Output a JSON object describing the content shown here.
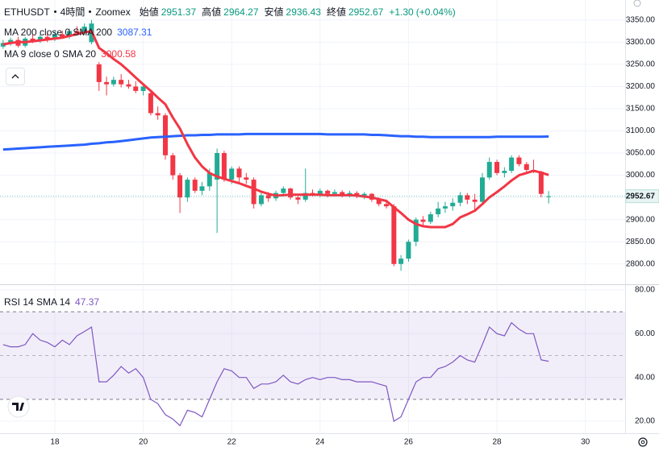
{
  "header": {
    "symbol": "ETHUSDT",
    "interval": "4時間",
    "exchange": "Zoomex",
    "open_label": "始値",
    "high_label": "高値",
    "low_label": "安値",
    "close_label": "終値",
    "change": "+1.30",
    "change_pct": "(+0.04%)"
  },
  "chart_data": [
    {
      "type": "candlestick",
      "up_color": "#22ab94",
      "down_color": "#f23645",
      "x": [
        16.83,
        17,
        17.17,
        17.33,
        17.5,
        17.67,
        17.83,
        18,
        18.17,
        18.33,
        18.5,
        18.67,
        18.83,
        19,
        19.17,
        19.33,
        19.5,
        19.67,
        19.83,
        20,
        20.17,
        20.33,
        20.5,
        20.67,
        20.83,
        21,
        21.17,
        21.33,
        21.5,
        21.67,
        21.83,
        22,
        22.17,
        22.33,
        22.5,
        22.67,
        22.83,
        23,
        23.17,
        23.33,
        23.5,
        23.67,
        23.83,
        24,
        24.17,
        24.33,
        24.5,
        24.67,
        24.83,
        25,
        25.17,
        25.33,
        25.5,
        25.67,
        25.83,
        26,
        26.17,
        26.33,
        26.5,
        26.67,
        26.83,
        27,
        27.17,
        27.33,
        27.5,
        27.67,
        27.83,
        28,
        28.17,
        28.33,
        28.5,
        28.67,
        28.83,
        29,
        29.17
      ],
      "open": [
        3290,
        3298,
        3305,
        3292,
        3308,
        3302,
        3312,
        3306,
        3318,
        3312,
        3325,
        3320,
        3300,
        3250,
        3210,
        3205,
        3215,
        3205,
        3200,
        3190,
        3185,
        3140,
        3135,
        3045,
        3000,
        2950,
        2990,
        2965,
        2975,
        2990,
        3050,
        2990,
        3015,
        2995,
        2990,
        2935,
        2955,
        2948,
        2960,
        2970,
        2950,
        2945,
        2960,
        2955,
        2965,
        2958,
        2962,
        2955,
        2960,
        2952,
        2958,
        2945,
        2935,
        2930,
        2800,
        2812,
        2850,
        2900,
        2895,
        2912,
        2925,
        2930,
        2938,
        2955,
        2945,
        2940,
        2995,
        3030,
        3005,
        3010,
        3040,
        3025,
        3012,
        3008,
        2951.37
      ],
      "high": [
        3305,
        3310,
        3312,
        3312,
        3318,
        3318,
        3320,
        3324,
        3326,
        3330,
        3336,
        3342,
        3350,
        3255,
        3222,
        3222,
        3228,
        3215,
        3212,
        3208,
        3190,
        3155,
        3140,
        3050,
        3005,
        2995,
        2995,
        2985,
        3015,
        3060,
        3055,
        3020,
        3020,
        3005,
        2995,
        2962,
        2962,
        2965,
        2975,
        2972,
        2958,
        3015,
        2968,
        2970,
        2968,
        2968,
        2966,
        2965,
        2964,
        2962,
        2960,
        2950,
        2945,
        2935,
        2820,
        2855,
        2905,
        2908,
        2918,
        2940,
        2940,
        2948,
        2962,
        2960,
        2958,
        3005,
        3040,
        3035,
        3018,
        3045,
        3045,
        3030,
        3035,
        3010,
        2964.27
      ],
      "low": [
        3285,
        3292,
        3288,
        3288,
        3298,
        3298,
        3300,
        3302,
        3308,
        3308,
        3316,
        3316,
        3295,
        3190,
        3180,
        3200,
        3198,
        3195,
        3185,
        3180,
        3135,
        3125,
        3035,
        2990,
        2915,
        2940,
        2960,
        2955,
        2965,
        2870,
        2985,
        2980,
        2985,
        2980,
        2925,
        2930,
        2940,
        2942,
        2955,
        2945,
        2935,
        2940,
        2952,
        2950,
        2950,
        2952,
        2950,
        2950,
        2948,
        2946,
        2940,
        2930,
        2925,
        2795,
        2785,
        2805,
        2840,
        2885,
        2890,
        2905,
        2915,
        2920,
        2930,
        2935,
        2920,
        2935,
        2990,
        3000,
        2995,
        3005,
        3020,
        3005,
        3005,
        2950,
        2936.43
      ],
      "close": [
        3298,
        3305,
        3292,
        3308,
        3302,
        3312,
        3306,
        3318,
        3312,
        3325,
        3320,
        3335,
        3342,
        3210,
        3205,
        3215,
        3205,
        3200,
        3190,
        3200,
        3140,
        3135,
        3045,
        3000,
        2950,
        2990,
        2965,
        2975,
        3005,
        3050,
        2990,
        3015,
        2995,
        2990,
        2935,
        2955,
        2948,
        2960,
        2970,
        2950,
        2945,
        2960,
        2955,
        2965,
        2958,
        2962,
        2955,
        2960,
        2952,
        2958,
        2945,
        2935,
        2930,
        2800,
        2812,
        2850,
        2900,
        2895,
        2912,
        2925,
        2930,
        2938,
        2955,
        2945,
        2940,
        2995,
        3030,
        3005,
        3010,
        3040,
        3025,
        3012,
        3008,
        2958,
        2952.67
      ],
      "series": [
        {
          "name": "MA 200 close 0 SMA 200",
          "color": "#2962ff",
          "values": [
            3058,
            3059,
            3060,
            3061,
            3062,
            3063,
            3064,
            3065,
            3066,
            3067,
            3068,
            3069,
            3071,
            3072,
            3074,
            3075,
            3077,
            3079,
            3081,
            3083,
            3085,
            3086,
            3087,
            3088,
            3089,
            3090,
            3090,
            3091,
            3091,
            3092,
            3092,
            3092,
            3092,
            3093,
            3093,
            3093,
            3093,
            3093,
            3093,
            3093,
            3093,
            3093,
            3093,
            3093,
            3092,
            3092,
            3092,
            3092,
            3092,
            3092,
            3091,
            3091,
            3090,
            3089,
            3088,
            3088,
            3087,
            3087,
            3086,
            3086,
            3086,
            3086,
            3086,
            3086,
            3086,
            3086,
            3086,
            3087,
            3087,
            3087,
            3087,
            3087,
            3087,
            3087,
            3087.31
          ]
        },
        {
          "name": "MA 9 close 0 SMA 20",
          "color": "#f23645",
          "values": [
            3295,
            3298,
            3300,
            3300,
            3302,
            3304,
            3306,
            3308,
            3310,
            3314,
            3318,
            3322,
            3325,
            3287,
            3275,
            3262,
            3250,
            3235,
            3220,
            3205,
            3190,
            3175,
            3160,
            3130,
            3105,
            3070,
            3040,
            3020,
            3005,
            2997,
            2992,
            2987,
            2982,
            2976,
            2970,
            2963,
            2958,
            2954,
            2955,
            2956,
            2956,
            2956,
            2956,
            2956,
            2955,
            2955,
            2955,
            2955,
            2954,
            2952,
            2950,
            2946,
            2942,
            2928,
            2915,
            2900,
            2890,
            2885,
            2883,
            2883,
            2883,
            2890,
            2905,
            2912,
            2920,
            2935,
            2950,
            2962,
            2975,
            2988,
            3000,
            3005,
            3010,
            3006,
            3000.58
          ]
        }
      ],
      "xlim": [
        16.76,
        30.9
      ],
      "xticks": [
        18,
        20,
        22,
        24,
        26,
        28,
        30
      ],
      "ylim": [
        2756,
        3395
      ],
      "yticks": [
        {
          "value": 2800,
          "label": "2800.00"
        },
        {
          "value": 2850,
          "label": "2850.00"
        },
        {
          "value": 2900,
          "label": "2900.00"
        },
        {
          "value": 2950,
          "label": "2950.00"
        },
        {
          "value": 3000,
          "label": "3000.00"
        },
        {
          "value": 3050,
          "label": "3050.00"
        },
        {
          "value": 3100,
          "label": "3100.00"
        },
        {
          "value": 3150,
          "label": "3150.00"
        },
        {
          "value": 3200,
          "label": "3200.00"
        },
        {
          "value": 3250,
          "label": "3250.00"
        },
        {
          "value": 3300,
          "label": "3300.00"
        },
        {
          "value": 3350,
          "label": "3350.00"
        }
      ],
      "grid": true
    },
    {
      "type": "line",
      "name": "RSI 14 SMA 14",
      "color": "#7e57c2",
      "values": [
        55,
        54,
        54,
        55,
        60,
        57,
        56,
        54,
        57,
        55,
        59,
        61,
        63,
        38,
        38,
        41,
        45,
        42,
        44,
        40,
        30,
        28,
        23,
        21,
        18,
        25,
        24,
        22,
        30,
        38,
        44,
        43,
        40,
        40,
        35,
        37,
        37,
        38,
        41,
        38,
        37,
        39,
        40,
        39,
        40,
        40,
        39,
        39,
        38,
        38,
        38,
        37,
        36,
        20,
        22,
        30,
        38,
        40,
        40,
        44,
        45,
        47,
        50,
        48,
        47,
        55,
        63,
        60,
        59,
        65,
        62,
        60,
        60,
        48,
        47.37
      ],
      "ylim": [
        14.5,
        81.8
      ],
      "yticks": [
        {
          "value": 20,
          "label": "20.00"
        },
        {
          "value": 40,
          "label": "40.00"
        },
        {
          "value": 60,
          "label": "60.00"
        },
        {
          "value": 80,
          "label": "80.00"
        }
      ],
      "band": [
        30,
        70
      ],
      "midline": 50
    }
  ]
}
